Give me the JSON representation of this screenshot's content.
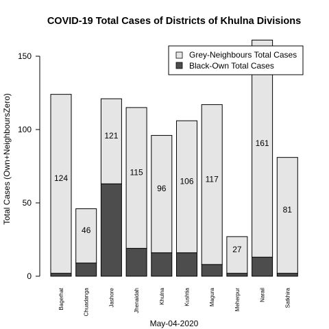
{
  "chart_data": {
    "type": "bar",
    "stacked": true,
    "title": "COVID-19 Total Cases of Districts of Khulna Divisions",
    "xlabel": "May-04-2020",
    "ylabel": "Total Cases (Own+NeighboursZero)",
    "ylim": [
      0,
      160
    ],
    "yticks": [
      0,
      50,
      100,
      150
    ],
    "ytick_labels": [
      "0",
      "50",
      "100",
      "150"
    ],
    "legend_position": "top-right",
    "categories": [
      "Bagerhat",
      "Chuadanga",
      "Jashore",
      "Jhenaidah",
      "Khulna",
      "Kushtia",
      "Magura",
      "Meherpur",
      "Narail",
      "Satkhira"
    ],
    "series": [
      {
        "name": "Grey-Neighbours Total Cases",
        "color": "#e5e5e5",
        "values": [
          122,
          37,
          58,
          96,
          80,
          90,
          109,
          25,
          148,
          79
        ]
      },
      {
        "name": "Black-Own Total Cases",
        "color": "#4d4d4d",
        "values": [
          2,
          9,
          63,
          19,
          16,
          16,
          8,
          2,
          13,
          2
        ]
      }
    ],
    "totals": [
      124,
      46,
      121,
      115,
      96,
      106,
      117,
      27,
      161,
      81
    ],
    "total_labels": [
      "124",
      "46",
      "121",
      "115",
      "96",
      "106",
      "117",
      "27",
      "161",
      "81"
    ],
    "grid": false
  }
}
